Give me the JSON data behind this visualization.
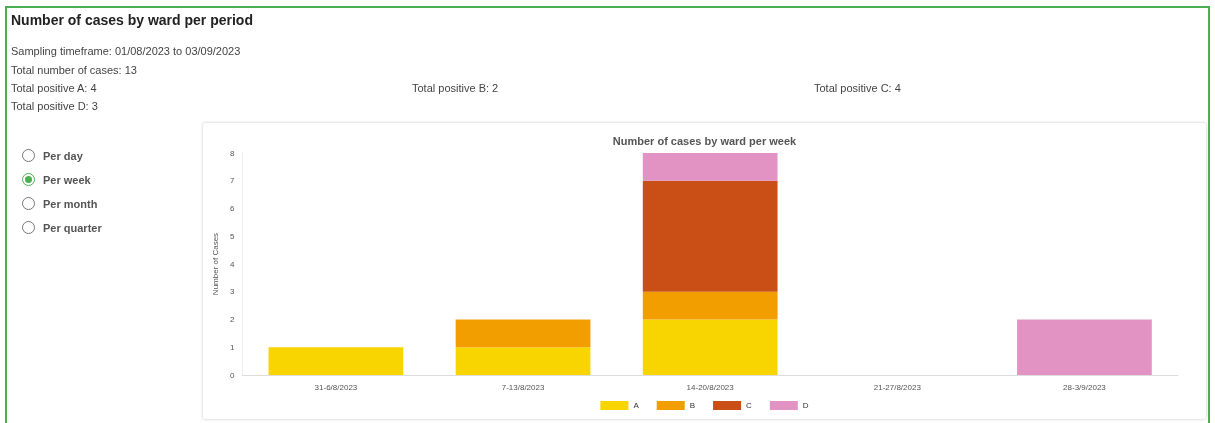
{
  "chart_data": {
    "type": "bar",
    "title": "Number of cases by ward per week",
    "ylabel": "Number of Cases",
    "annotations": [
      "Number of cases by ward per period",
      "Sampling timeframe: 01/08/2023 to 03/09/2023",
      "Total number of cases: 13",
      "Total positive A: 4",
      "Total positive B: 2",
      "Total positive C: 4",
      "Total positive D: 3",
      "Per day",
      "Per week",
      "Per month",
      "Per quarter"
    ],
    "categories": [
      "31-6/8/2023",
      "7-13/8/2023",
      "14-20/8/2023",
      "21-27/8/2023",
      "28-3/9/2023"
    ],
    "stacked": true,
    "series": [
      {
        "name": "A",
        "color": "#f9d500",
        "values": [
          1,
          1,
          2,
          0,
          0
        ]
      },
      {
        "name": "B",
        "color": "#f29d00",
        "values": [
          0,
          1,
          1,
          0,
          0
        ]
      },
      {
        "name": "C",
        "color": "#c94f17",
        "values": [
          0,
          0,
          4,
          0,
          0
        ]
      },
      {
        "name": "D",
        "color": "#e393c3",
        "values": [
          0,
          0,
          1,
          0,
          2
        ]
      }
    ],
    "ylim": [
      0,
      8
    ],
    "yticks": [
      0,
      1,
      2,
      3,
      4,
      5,
      6,
      7,
      8
    ],
    "grid": false,
    "legend": "bottom"
  }
}
